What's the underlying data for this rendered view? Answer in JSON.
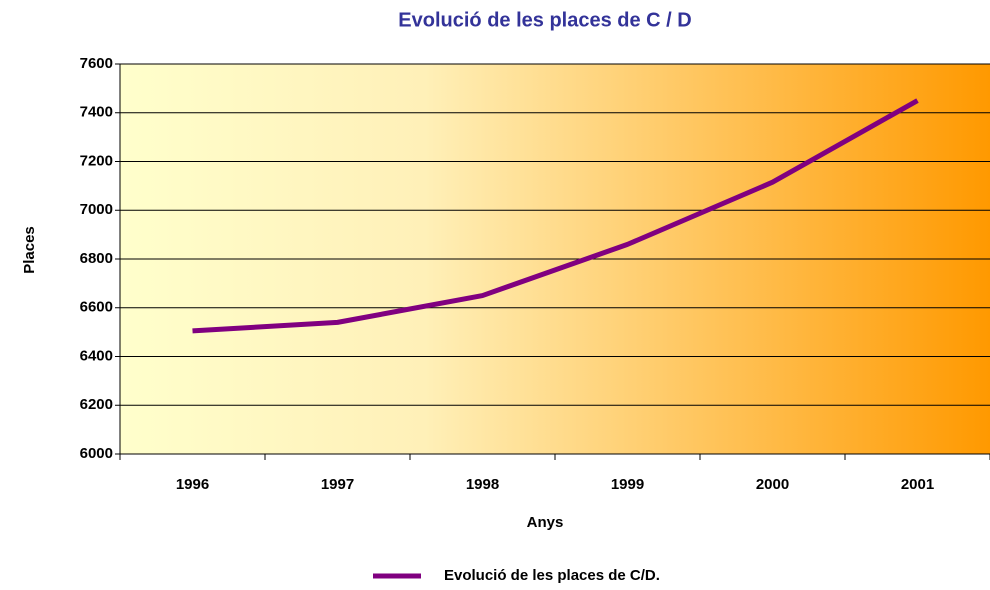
{
  "chart_data": {
    "type": "line",
    "title": "Evolució de les places de C / D",
    "x_label": "Anys",
    "y_label": "Places",
    "categories": [
      "1996",
      "1997",
      "1998",
      "1999",
      "2000",
      "2001"
    ],
    "series": [
      {
        "name": "Evolució de les places de C/D.",
        "color": "#800080",
        "values": [
          6505,
          6540,
          6650,
          6860,
          7115,
          7450
        ]
      }
    ],
    "ylim": [
      6000,
      7600
    ],
    "yticks": [
      6000,
      6200,
      6400,
      6600,
      6800,
      7000,
      7200,
      7400,
      7600
    ],
    "grid": true,
    "legend": "bottom"
  }
}
